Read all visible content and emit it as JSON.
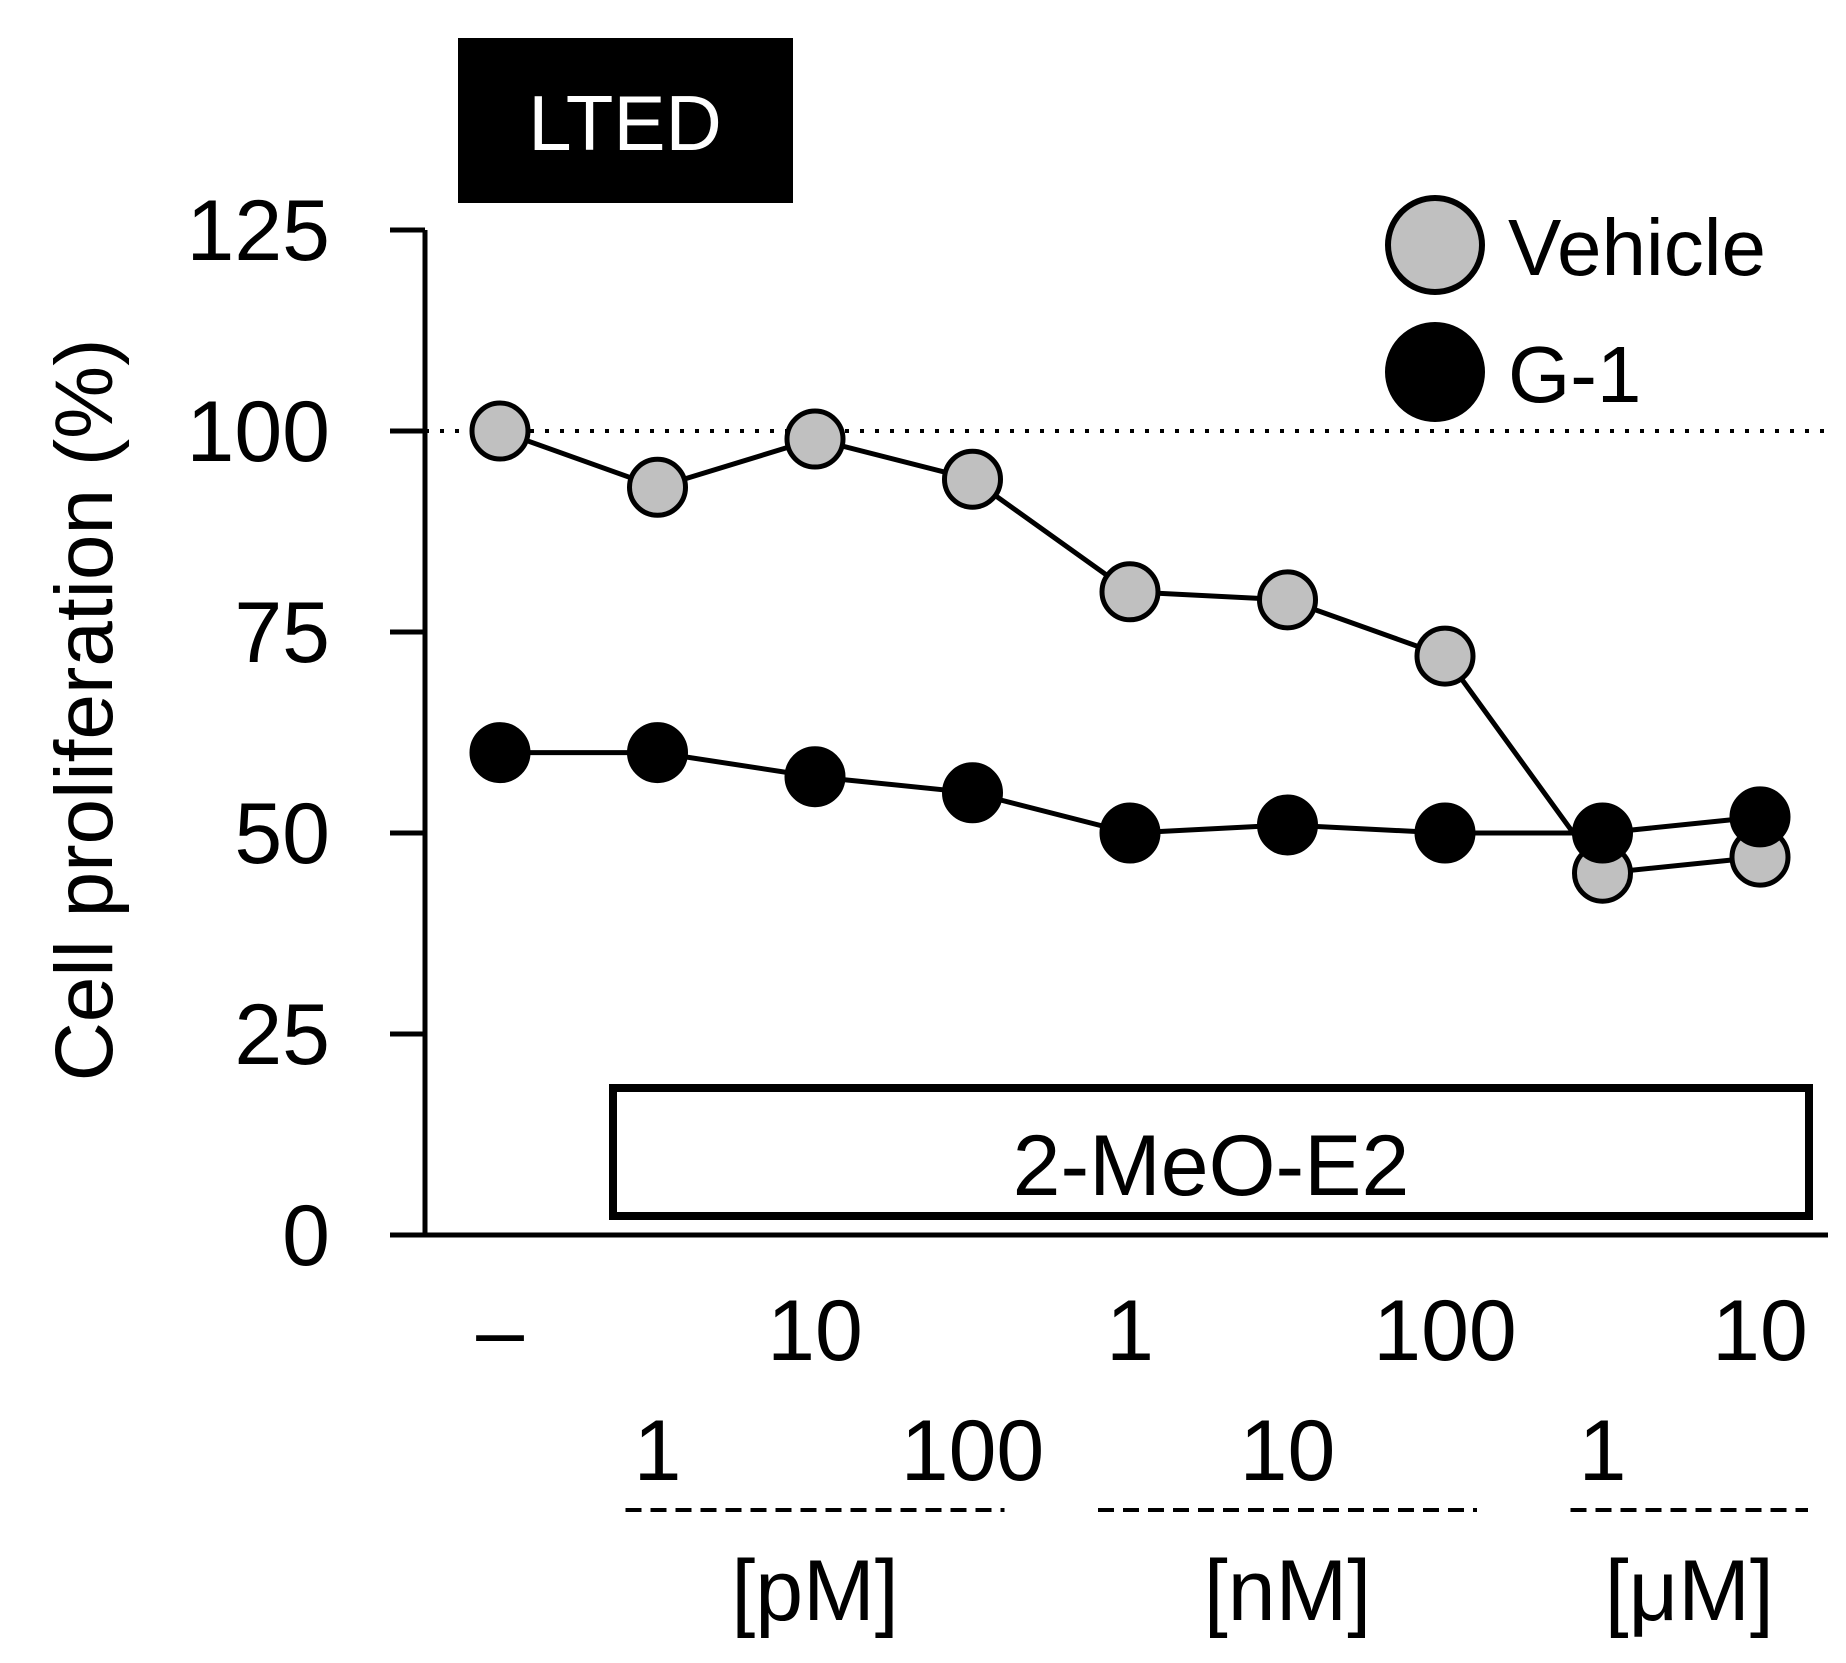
{
  "chart_data": {
    "type": "line",
    "panel_label": "LTED",
    "ylabel": "Cell proliferation (%)",
    "ylim": [
      0,
      125
    ],
    "yticks": [
      "0",
      "25",
      "50",
      "75",
      "100",
      "125"
    ],
    "reference_line": 100,
    "treatment_bar_label": "2-MeO-E2",
    "x_tick_labels": [
      "–",
      "1",
      "10",
      "100",
      "1",
      "10",
      "100",
      "1",
      "10"
    ],
    "unit_groups": [
      {
        "label": "[pM]",
        "from": 1,
        "to": 3
      },
      {
        "label": "[nM]",
        "from": 4,
        "to": 6
      },
      {
        "label": "[μM]",
        "from": 7,
        "to": 8
      }
    ],
    "series": [
      {
        "name": "Vehicle",
        "color": "#c0c0c0",
        "values": [
          100,
          93,
          99,
          94,
          80,
          79,
          72,
          45,
          47
        ]
      },
      {
        "name": "G-1",
        "color": "#000000",
        "values": [
          60,
          60,
          57,
          55,
          50,
          51,
          50,
          50,
          52
        ]
      }
    ]
  }
}
